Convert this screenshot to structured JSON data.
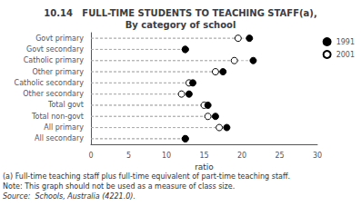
{
  "chart_data": {
    "type": "scatter",
    "orientation": "horizontal",
    "title": "10.14   FULL-TIME STUDENTS TO TEACHING STAFF(a),\nBy category of school",
    "categories": [
      "Govt primary",
      "Govt secondary",
      "Catholic primary",
      "Other primary",
      "Catholic secondary",
      "Other secondary",
      "Total govt",
      "Total non-govt",
      "All primary",
      "All secondary"
    ],
    "series": [
      {
        "name": "1991",
        "color": "black",
        "marker": "circle",
        "values": [
          21.0,
          12.5,
          21.5,
          17.5,
          13.5,
          13.0,
          15.5,
          16.5,
          18.0,
          12.5
        ]
      },
      {
        "name": "2001",
        "color": "black",
        "marker": "open circle",
        "values": [
          19.5,
          12.5,
          19.0,
          16.5,
          13.0,
          12.0,
          15.0,
          15.5,
          17.0,
          12.5
        ]
      }
    ],
    "xlabel": "ratio",
    "xlim": [
      0,
      30
    ],
    "xticks": [
      0,
      5,
      10,
      15,
      20,
      25,
      30
    ],
    "grid": false,
    "legend": "upper right",
    "footnotes": [
      "(a) Full-time teaching staff plus full-time equivalent of part-time teaching staff.",
      "Note: This graph should not be used as a measure of class size.",
      "Source:  Schools, Australia (4221.0)."
    ]
  }
}
